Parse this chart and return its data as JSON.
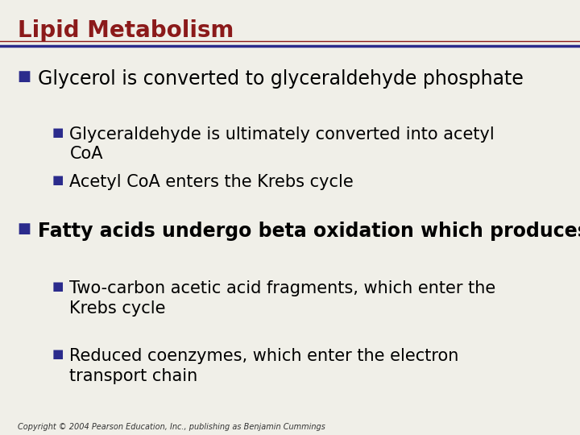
{
  "title": "Lipid Metabolism",
  "title_color": "#8B1A1A",
  "title_fontsize": 20,
  "bg_color": "#F0EFE8",
  "header_line_color_blue": "#2B2B8C",
  "header_line_color_red": "#8B1A1A",
  "bullet_color": "#2B2B8C",
  "text_color": "#000000",
  "copyright": "Copyright © 2004 Pearson Education, Inc., publishing as Benjamin Cummings",
  "copyright_fontsize": 7,
  "items": [
    {
      "level": 1,
      "text": "Glycerol is converted to glyceraldehyde phosphate",
      "bold": false,
      "fontsize": 17
    },
    {
      "level": 2,
      "text": "Glyceraldehyde is ultimately converted into acetyl\nCoA",
      "bold": false,
      "fontsize": 15
    },
    {
      "level": 2,
      "text": "Acetyl CoA enters the Krebs cycle",
      "bold": false,
      "fontsize": 15
    },
    {
      "level": 1,
      "text": "Fatty acids undergo beta oxidation which produces:",
      "bold": true,
      "fontsize": 17
    },
    {
      "level": 2,
      "text": "Two-carbon acetic acid fragments, which enter the\nKrebs cycle",
      "bold": false,
      "fontsize": 15
    },
    {
      "level": 2,
      "text": "Reduced coenzymes, which enter the electron\ntransport chain",
      "bold": false,
      "fontsize": 15
    }
  ]
}
